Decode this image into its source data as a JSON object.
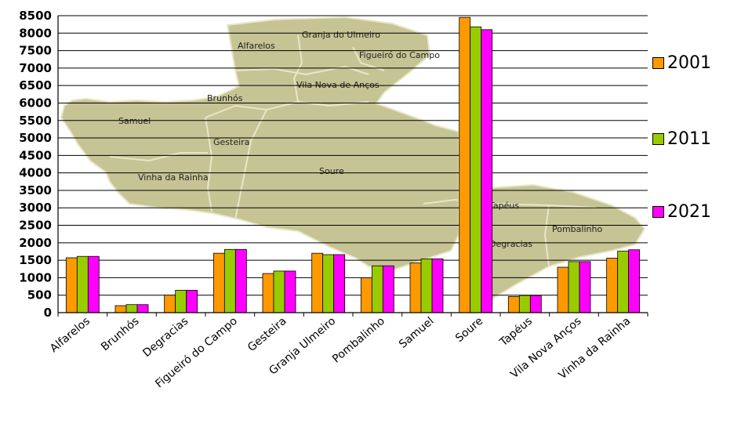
{
  "chart_data": {
    "type": "bar",
    "title": "",
    "xlabel": "",
    "ylabel": "",
    "ylim": [
      0,
      8500
    ],
    "yticks": [
      0,
      500,
      1000,
      1500,
      2000,
      2500,
      3000,
      3500,
      4000,
      4500,
      5000,
      5500,
      6000,
      6500,
      7000,
      7500,
      8000,
      8500
    ],
    "grid": true,
    "legend_position": "right",
    "categories": [
      "Alfarelos",
      "Brunhós",
      "Degracias",
      "Figueiró do Campo",
      "Gesteira",
      "Granja Ulmeiro",
      "Pombalinho",
      "Samuel",
      "Soure",
      "Tapéus",
      "Vila Nova Anços",
      "Vinha da Rainha"
    ],
    "series": [
      {
        "name": "2001",
        "color": "#ff9900",
        "values": [
          1570,
          200,
          500,
          1700,
          1120,
          1700,
          1000,
          1420,
          8450,
          460,
          1300,
          1560
        ]
      },
      {
        "name": "2011",
        "color": "#99cc00",
        "values": [
          1610,
          230,
          640,
          1810,
          1190,
          1660,
          1340,
          1540,
          8180,
          490,
          1460,
          1760
        ]
      },
      {
        "name": "2021",
        "color": "#ff00ff",
        "values": [
          1610,
          230,
          640,
          1810,
          1190,
          1660,
          1340,
          1540,
          8100,
          490,
          1460,
          1800
        ]
      }
    ],
    "background_map_labels": [
      "Alfarelos",
      "Granja do Ulmeiro",
      "Figueiró do Campo",
      "Vila Nova de Anços",
      "Brunhós",
      "Samuel",
      "Gesteira",
      "Soure",
      "Vinha da Rainha",
      "Tapéus",
      "Degracias",
      "Pombalinho"
    ]
  }
}
